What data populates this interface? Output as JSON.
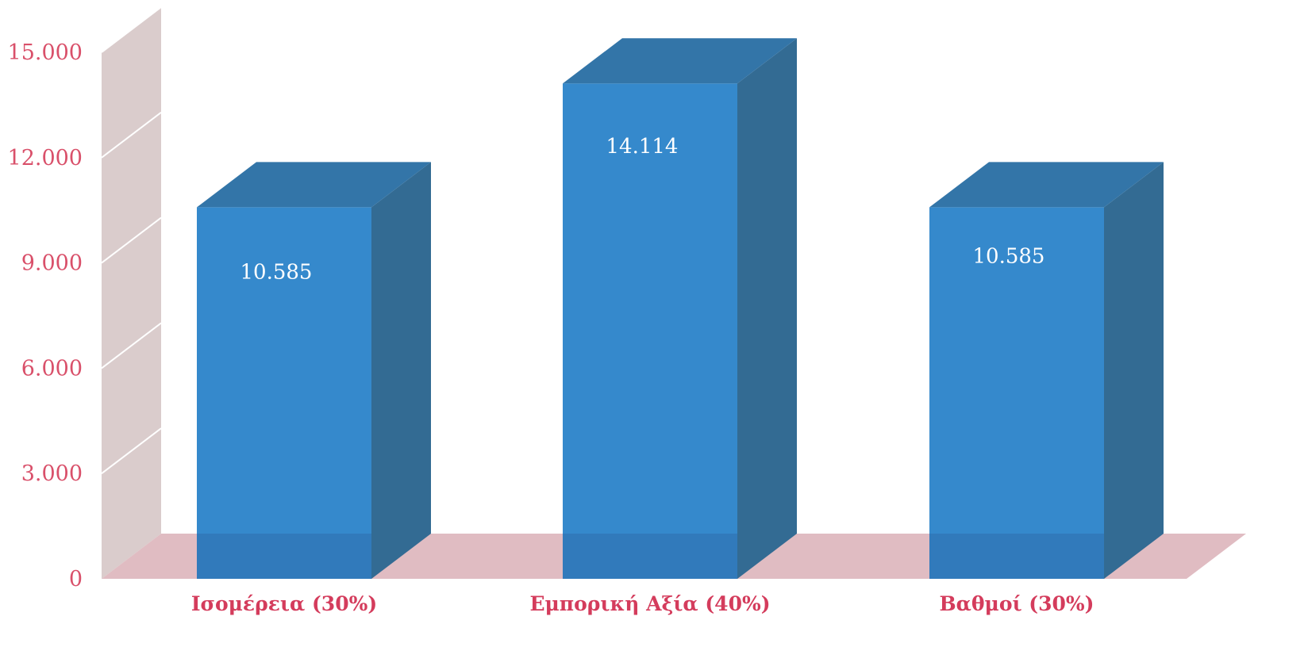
{
  "chart_data": {
    "type": "bar",
    "style": "3d-column",
    "categories": [
      "Ισομέρεια (30%)",
      "Εμπορική Αξία (40%)",
      "Βαθμοί (30%)"
    ],
    "values": [
      10585,
      14114,
      10585
    ],
    "data_labels": [
      "10.585",
      "14.114",
      "10.585"
    ],
    "y_ticks": [
      0,
      3000,
      6000,
      9000,
      12000,
      15000
    ],
    "y_tick_labels": [
      "0",
      "3.000",
      "6.000",
      "9.000",
      "12.000",
      "15.000"
    ],
    "ylim": [
      0,
      15000
    ],
    "title": "",
    "xlabel": "",
    "ylabel": "",
    "grid": true,
    "legend": "none"
  },
  "colors": {
    "bar_front": "#3589cc",
    "bar_side": "#336b93",
    "bar_top": "#3375a8",
    "wall": "#dacccc",
    "floor": "#e0bcc2",
    "tick_text": "#d9506a",
    "category_text": "#d43c5c",
    "data_label_text": "#ffffff",
    "grid_line": "#ffffff"
  }
}
